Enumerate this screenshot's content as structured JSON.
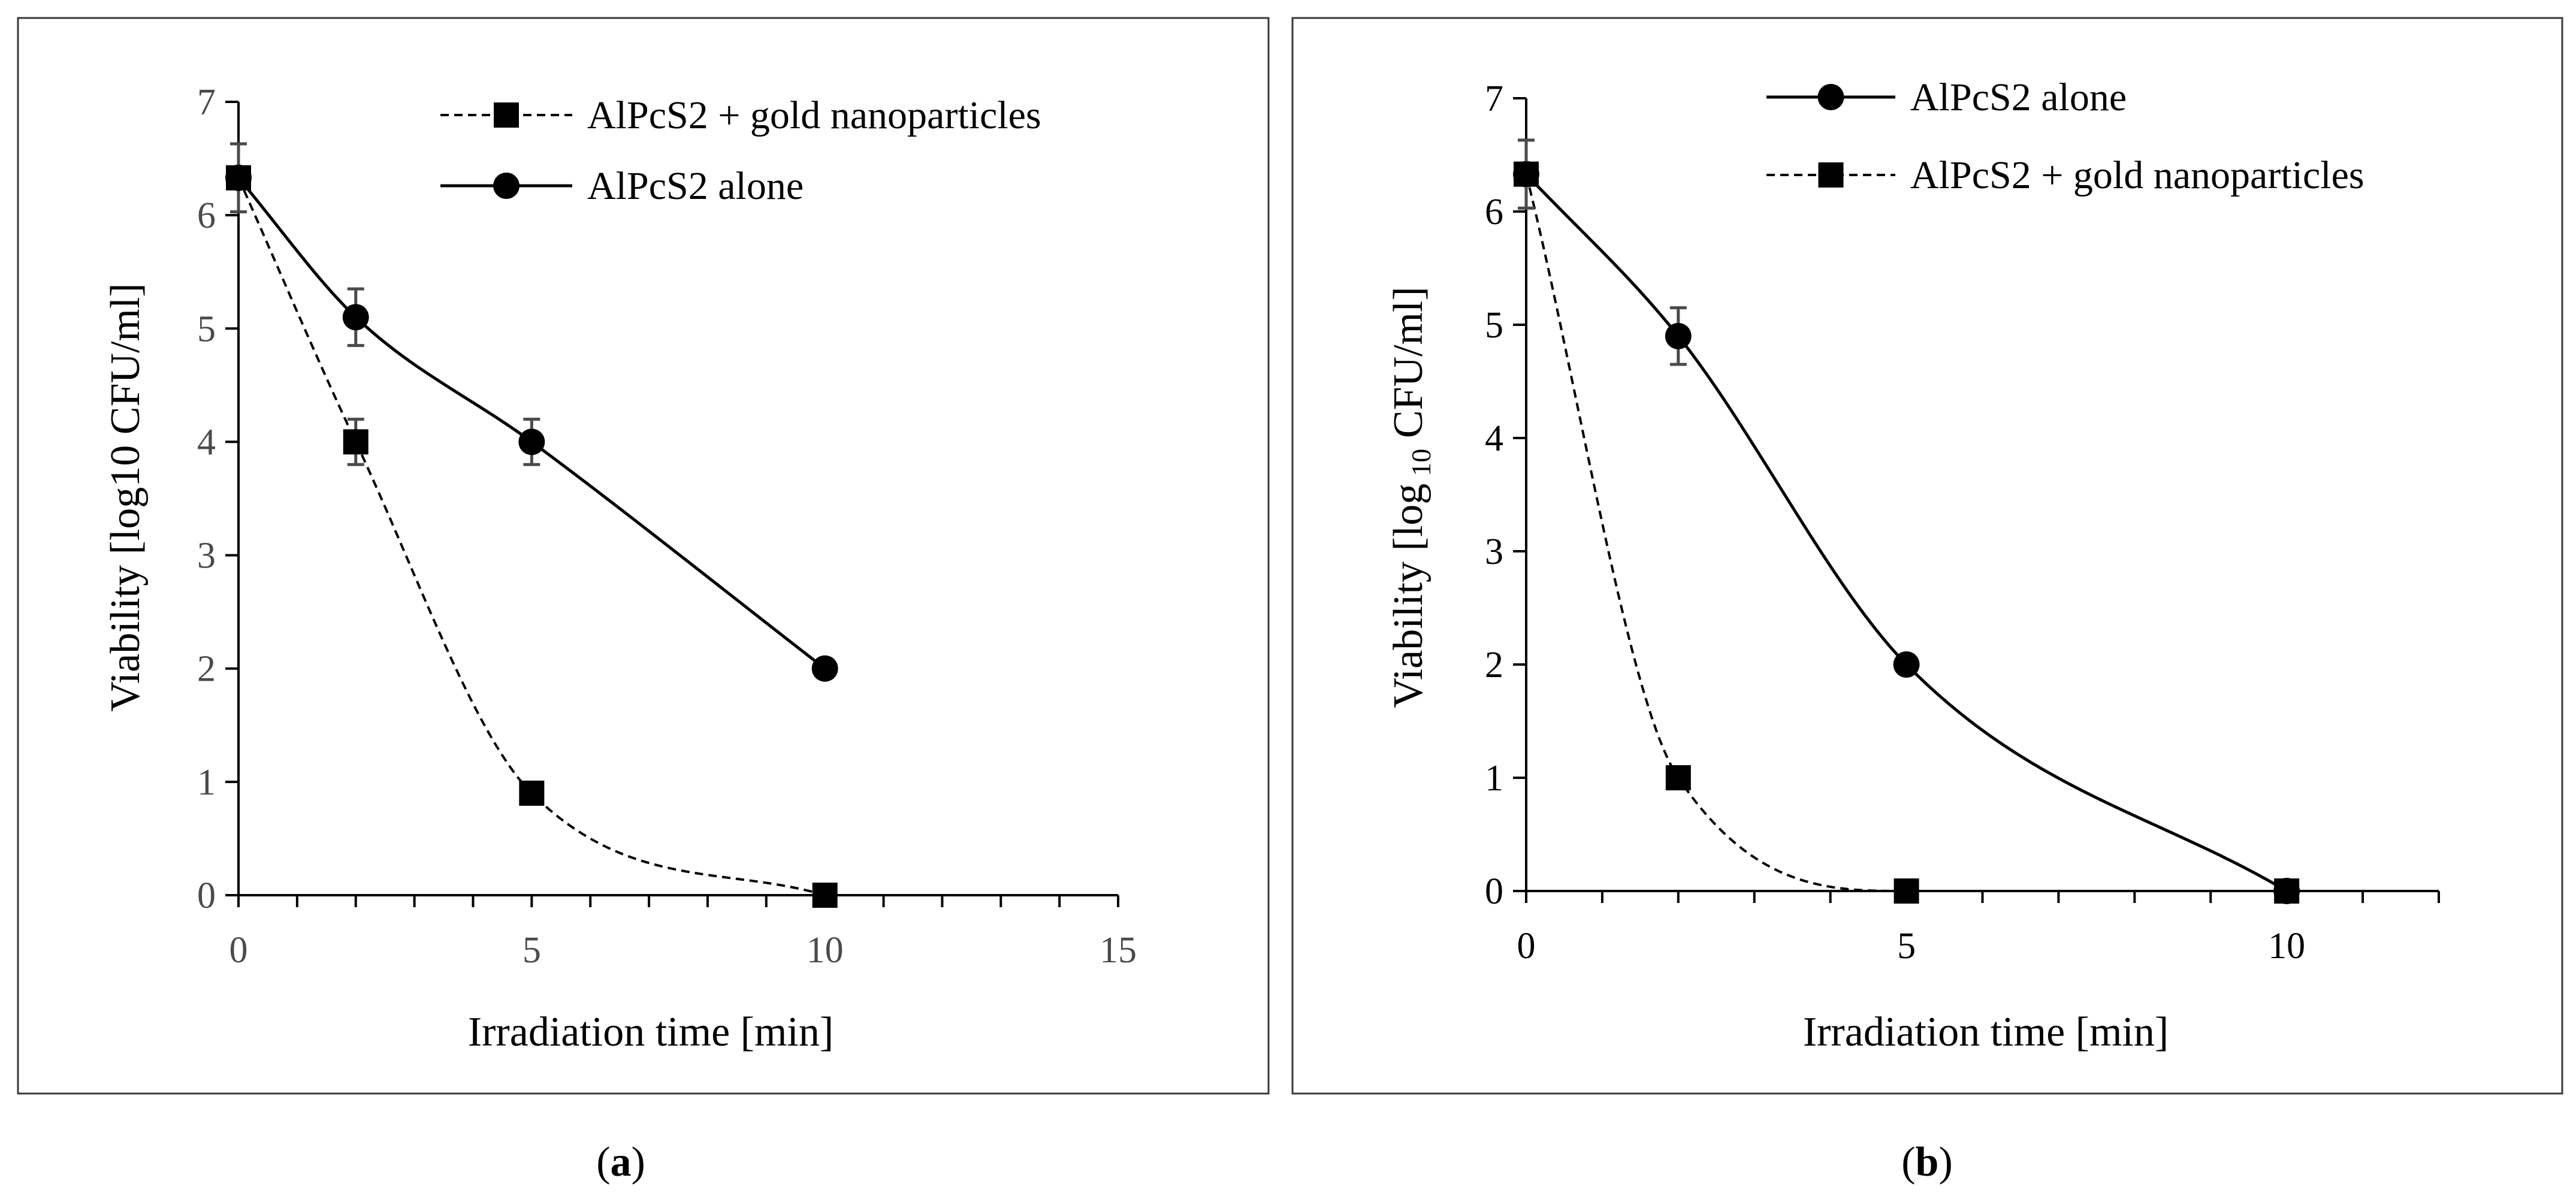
{
  "chart_data": [
    {
      "type": "line",
      "panel_label": "a",
      "xlabel": "Irradiation time [min]",
      "ylabel": "Viability [log10 CFU/ml]",
      "xlim": [
        0,
        15
      ],
      "ylim": [
        0,
        7
      ],
      "x_ticks": [
        0,
        5,
        10,
        15
      ],
      "x_minor_step": 1,
      "y_ticks": [
        0,
        1,
        2,
        3,
        4,
        5,
        6,
        7
      ],
      "legend_position": "top-right",
      "series": [
        {
          "name": "AlPcS2 + gold nanoparticles",
          "marker": "square",
          "line": "dashed",
          "x": [
            0,
            2,
            5,
            10
          ],
          "y": [
            6.33,
            4.0,
            0.9,
            0.0
          ],
          "error": [
            0.3,
            0.2,
            0.0,
            0.0
          ]
        },
        {
          "name": "AlPcS2 alone",
          "marker": "circle",
          "line": "solid",
          "x": [
            0,
            2,
            5,
            10
          ],
          "y": [
            6.33,
            5.1,
            4.0,
            2.0
          ],
          "error": [
            0.3,
            0.25,
            0.2,
            0.08
          ]
        }
      ]
    },
    {
      "type": "line",
      "panel_label": "b",
      "xlabel": "Irradiation time [min]",
      "ylabel_main": "Viability [log",
      "ylabel_sub": "10",
      "ylabel_end": " CFU/ml]",
      "xlim": [
        0,
        12
      ],
      "ylim": [
        0,
        7
      ],
      "x_ticks": [
        0,
        5,
        10
      ],
      "x_minor_step": 1,
      "y_ticks": [
        0,
        1,
        2,
        3,
        4,
        5,
        6,
        7
      ],
      "legend_position": "top-right",
      "series": [
        {
          "name": "AlPcS2 alone",
          "marker": "circle",
          "line": "solid",
          "x": [
            0,
            2,
            5,
            10
          ],
          "y": [
            6.33,
            4.9,
            2.0,
            0.0
          ],
          "error": [
            0.3,
            0.25,
            0.08,
            0.0
          ]
        },
        {
          "name": "AlPcS2 + gold nanoparticles",
          "marker": "square",
          "line": "dashed",
          "x": [
            0,
            2,
            5,
            10
          ],
          "y": [
            6.33,
            1.0,
            0.0,
            0.0
          ],
          "error": [
            0.3,
            0.0,
            0.0,
            0.0
          ]
        }
      ]
    }
  ]
}
